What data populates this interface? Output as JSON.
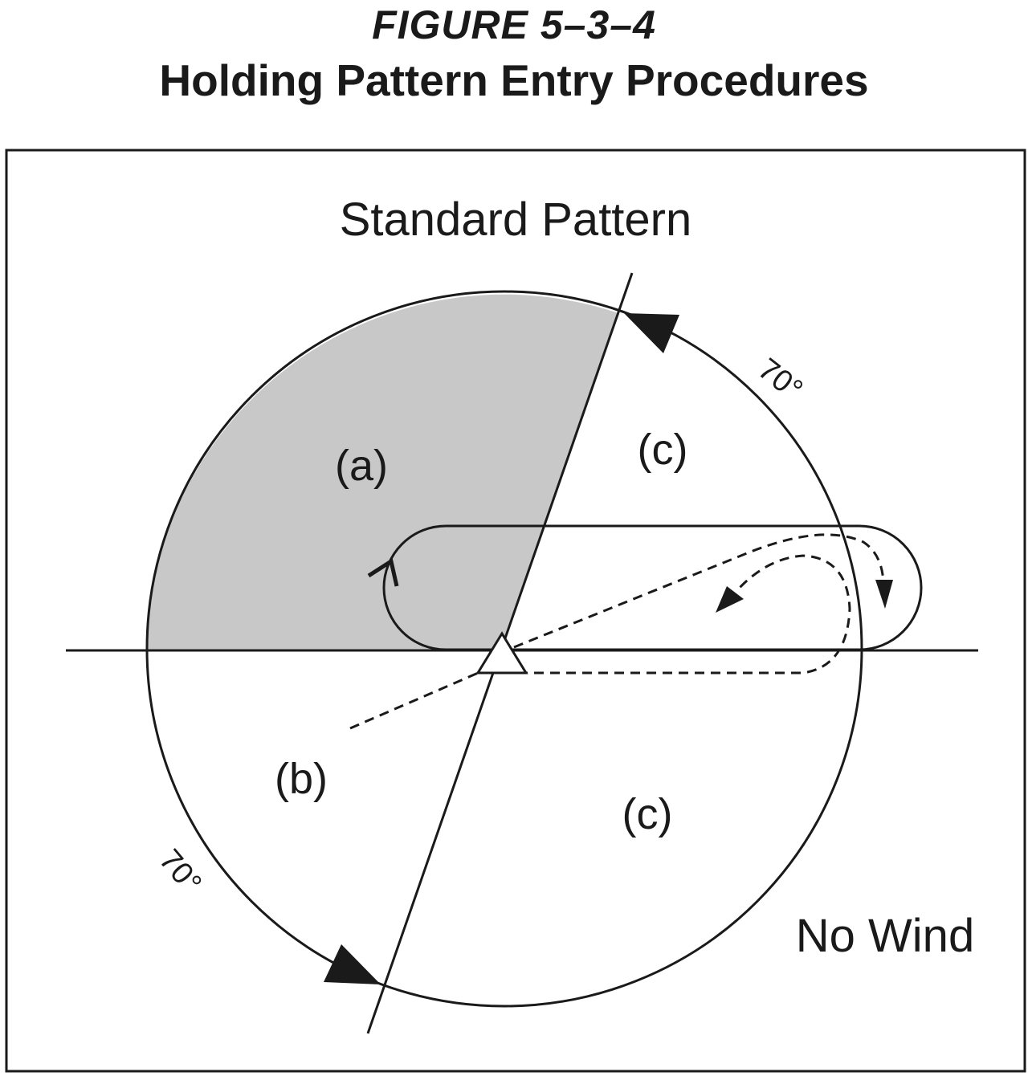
{
  "figure": {
    "number": "FIGURE 5–3–4",
    "title": "Holding Pattern Entry Procedures"
  },
  "diagram": {
    "heading": "Standard Pattern",
    "wind_label": "No Wind",
    "sector_labels": {
      "a": "(a)",
      "b": "(b)",
      "c_upper": "(c)",
      "c_lower": "(c)"
    },
    "angle_labels": {
      "upper": "70°",
      "lower": "70°"
    },
    "colors": {
      "shaded_sector": "#c8c8c8",
      "line": "#1a1a1a",
      "background": "#ffffff"
    },
    "icons": [
      "holding-fix-triangle-icon",
      "arrowhead-icon"
    ]
  }
}
